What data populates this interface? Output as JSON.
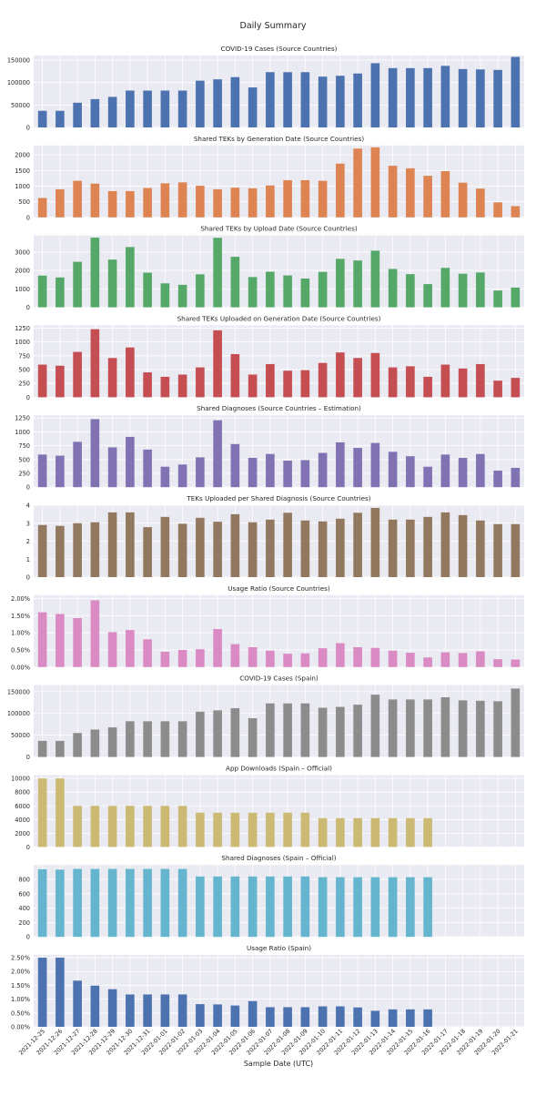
{
  "page": {
    "title": "Daily Summary"
  },
  "x_axis_label": "Sample Date (UTC)",
  "dates": [
    "2021-12-25",
    "2021-12-26",
    "2021-12-27",
    "2021-12-28",
    "2021-12-29",
    "2021-12-30",
    "2021-12-31",
    "2022-01-01",
    "2022-01-02",
    "2022-01-03",
    "2022-01-04",
    "2022-01-05",
    "2022-01-06",
    "2022-01-07",
    "2022-01-08",
    "2022-01-09",
    "2022-01-10",
    "2022-01-11",
    "2022-01-12",
    "2022-01-13",
    "2022-01-14",
    "2022-01-15",
    "2022-01-16",
    "2022-01-17",
    "2022-01-18",
    "2022-01-19",
    "2022-01-20",
    "2022-01-21"
  ],
  "chart_data": [
    {
      "type": "bar",
      "title": "COVID-19 Cases (Source Countries)",
      "color": "#4c72b0",
      "ylim": [
        0,
        160000
      ],
      "yticks": [
        0,
        50000,
        100000,
        150000
      ],
      "values": [
        37000,
        37000,
        55000,
        63000,
        68000,
        82000,
        82000,
        82000,
        82000,
        104000,
        107000,
        112000,
        89000,
        123000,
        123000,
        123000,
        113000,
        115000,
        120000,
        143000,
        132000,
        132000,
        132000,
        137000,
        130000,
        129000,
        128000,
        157000
      ]
    },
    {
      "type": "bar",
      "title": "Shared TEKs by Generation Date (Source Countries)",
      "color": "#dd8452",
      "ylim": [
        0,
        2300
      ],
      "yticks": [
        0,
        500,
        1000,
        1500,
        2000
      ],
      "values": [
        620,
        900,
        1170,
        1080,
        840,
        840,
        940,
        1090,
        1120,
        1010,
        900,
        950,
        930,
        1020,
        1190,
        1190,
        1170,
        1720,
        2200,
        2240,
        1650,
        1570,
        1330,
        1480,
        1110,
        920,
        480,
        360
      ]
    },
    {
      "type": "bar",
      "title": "Shared TEKs by Upload Date (Source Countries)",
      "color": "#55a868",
      "ylim": [
        0,
        3900
      ],
      "yticks": [
        0,
        1000,
        2000,
        3000
      ],
      "values": [
        1720,
        1620,
        2470,
        3780,
        2590,
        3270,
        1880,
        1300,
        1220,
        1790,
        3770,
        2740,
        1640,
        1930,
        1730,
        1560,
        1920,
        2630,
        2540,
        3070,
        2080,
        1800,
        1260,
        2140,
        1820,
        1890,
        910,
        1070
      ]
    },
    {
      "type": "bar",
      "title": "Shared TEKs Uploaded on Generation Date (Source Countries)",
      "color": "#c44e52",
      "ylim": [
        0,
        1300
      ],
      "yticks": [
        0,
        250,
        500,
        750,
        1000,
        1250
      ],
      "values": [
        590,
        570,
        820,
        1230,
        710,
        900,
        450,
        370,
        410,
        540,
        1210,
        780,
        410,
        600,
        480,
        490,
        620,
        810,
        710,
        800,
        540,
        560,
        370,
        590,
        520,
        600,
        300,
        350
      ]
    },
    {
      "type": "bar",
      "title": "Shared Diagnoses (Source Countries – Estimation)",
      "color": "#8172b3",
      "ylim": [
        0,
        1300
      ],
      "yticks": [
        0,
        250,
        500,
        750,
        1000,
        1250
      ],
      "values": [
        590,
        570,
        820,
        1230,
        720,
        910,
        680,
        370,
        410,
        540,
        1210,
        780,
        530,
        600,
        480,
        490,
        620,
        810,
        710,
        800,
        640,
        560,
        370,
        590,
        530,
        600,
        300,
        350
      ]
    },
    {
      "type": "bar",
      "title": "TEKs Uploaded per Shared Diagnosis (Source Countries)",
      "color": "#937860",
      "ylim": [
        0,
        4
      ],
      "yticks": [
        0,
        1,
        2,
        3,
        4
      ],
      "values": [
        2.9,
        2.85,
        3.0,
        3.05,
        3.6,
        3.6,
        2.78,
        3.35,
        2.97,
        3.3,
        3.08,
        3.5,
        3.05,
        3.2,
        3.58,
        3.15,
        3.1,
        3.25,
        3.58,
        3.85,
        3.2,
        3.2,
        3.35,
        3.6,
        3.45,
        3.15,
        2.95,
        2.95
      ]
    },
    {
      "type": "bar",
      "title": "Usage Ratio (Source Countries)",
      "color": "#da8bc3",
      "ylim": [
        0,
        0.021
      ],
      "yticks": [
        0,
        0.005,
        0.01,
        0.015,
        0.02
      ],
      "tick_format": "percent",
      "values": [
        0.016,
        0.0155,
        0.0143,
        0.0195,
        0.0102,
        0.0108,
        0.0081,
        0.0045,
        0.005,
        0.0052,
        0.0111,
        0.0067,
        0.0058,
        0.0048,
        0.0039,
        0.004,
        0.0055,
        0.007,
        0.0058,
        0.0056,
        0.0048,
        0.0042,
        0.0028,
        0.0043,
        0.0041,
        0.0046,
        0.0023,
        0.0022
      ]
    },
    {
      "type": "bar",
      "title": "COVID-19 Cases (Spain)",
      "color": "#8c8c8c",
      "ylim": [
        0,
        165000
      ],
      "yticks": [
        0,
        50000,
        100000,
        150000
      ],
      "values": [
        37000,
        37000,
        55000,
        63000,
        68000,
        82000,
        82000,
        82000,
        82000,
        104000,
        107000,
        112000,
        89000,
        123000,
        123000,
        123000,
        113000,
        115000,
        120000,
        143000,
        132000,
        132000,
        132000,
        137000,
        130000,
        129000,
        128000,
        157000
      ]
    },
    {
      "type": "bar",
      "title": "App Downloads (Spain – Official)",
      "color": "#ccb974",
      "ylim": [
        0,
        10500
      ],
      "yticks": [
        0,
        2000,
        4000,
        6000,
        8000,
        10000
      ],
      "values": [
        10000,
        10000,
        6000,
        6000,
        6000,
        6000,
        6000,
        6000,
        6000,
        5000,
        5000,
        5000,
        5000,
        5000,
        5000,
        5000,
        4200,
        4200,
        4200,
        4200,
        4200,
        4200,
        4200,
        null,
        null,
        null,
        null,
        null
      ]
    },
    {
      "type": "bar",
      "title": "Shared Diagnoses (Spain – Official)",
      "color": "#64b5cd",
      "ylim": [
        0,
        1000
      ],
      "yticks": [
        0,
        200,
        400,
        600,
        800
      ],
      "values": [
        940,
        935,
        945,
        945,
        945,
        945,
        945,
        945,
        945,
        840,
        840,
        840,
        840,
        840,
        840,
        840,
        830,
        830,
        830,
        830,
        830,
        830,
        830,
        null,
        null,
        null,
        null,
        null
      ]
    },
    {
      "type": "bar",
      "title": "Usage Ratio (Spain)",
      "color": "#4c72b0",
      "ylim": [
        0,
        0.026
      ],
      "yticks": [
        0,
        0.005,
        0.01,
        0.015,
        0.02,
        0.025
      ],
      "tick_format": "percent",
      "values": [
        0.025,
        0.025,
        0.0167,
        0.0149,
        0.0136,
        0.0117,
        0.0117,
        0.0117,
        0.0117,
        0.0082,
        0.0081,
        0.0077,
        0.0093,
        0.0071,
        0.0071,
        0.0071,
        0.0074,
        0.0074,
        0.007,
        0.0058,
        0.0063,
        0.0063,
        0.0063,
        null,
        null,
        null,
        null,
        null
      ]
    }
  ]
}
